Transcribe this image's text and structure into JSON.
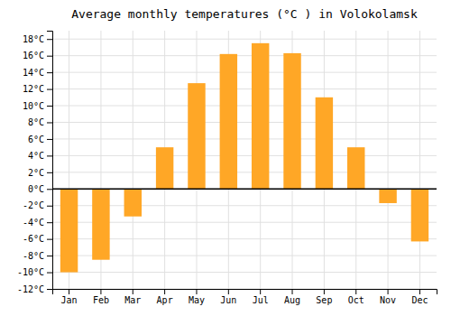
{
  "chart_data": {
    "type": "bar",
    "title": "Average monthly temperatures (°C ) in Volokolamsk",
    "categories": [
      "Jan",
      "Feb",
      "Mar",
      "Apr",
      "May",
      "Jun",
      "Jul",
      "Aug",
      "Sep",
      "Oct",
      "Nov",
      "Dec"
    ],
    "values": [
      -10,
      -8.5,
      -3.3,
      5.0,
      12.7,
      16.2,
      17.5,
      16.3,
      11.0,
      5.0,
      -1.7,
      -6.3
    ],
    "color": "#FFA726",
    "ylim": [
      -12,
      19
    ],
    "yticks": [
      {
        "value": -12,
        "label": "-12°C"
      },
      {
        "value": -10,
        "label": "-10°C"
      },
      {
        "value": -8,
        "label": "-8°C"
      },
      {
        "value": -6,
        "label": "-6°C"
      },
      {
        "value": -4,
        "label": "-4°C"
      },
      {
        "value": -2,
        "label": "-2°C"
      },
      {
        "value": 0,
        "label": "0°C"
      },
      {
        "value": 2,
        "label": "2°C"
      },
      {
        "value": 4,
        "label": "4°C"
      },
      {
        "value": 6,
        "label": "6°C"
      },
      {
        "value": 8,
        "label": "8°C"
      },
      {
        "value": 10,
        "label": "10°C"
      },
      {
        "value": 12,
        "label": "12°C"
      },
      {
        "value": 14,
        "label": "14°C"
      },
      {
        "value": 16,
        "label": "16°C"
      },
      {
        "value": 18,
        "label": "18°C"
      }
    ],
    "grid": true
  }
}
